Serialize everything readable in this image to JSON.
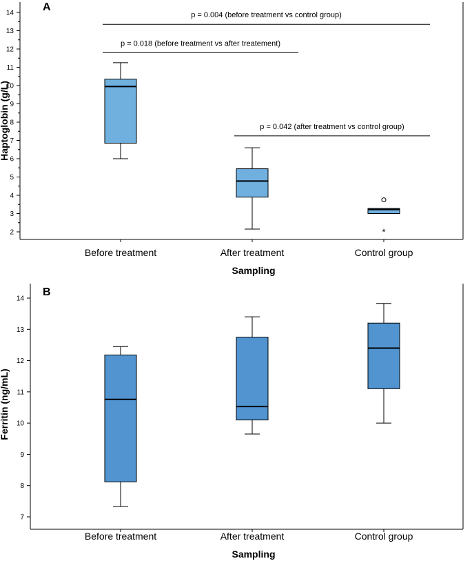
{
  "chart_data": [
    {
      "type": "box",
      "panel": "A",
      "ylabel": "Haptoglobin (g/L)",
      "xlabel": "Sampling",
      "ylim": [
        1.5,
        14.3
      ],
      "yticks": [
        2,
        3,
        4,
        5,
        6,
        7,
        8,
        9,
        10,
        11,
        12,
        13,
        14
      ],
      "categories": [
        "Before treatment",
        "After treatment",
        "Control group"
      ],
      "boxes": [
        {
          "category": "Before treatment",
          "min": 6.0,
          "q1": 6.85,
          "median": 9.95,
          "q3": 10.35,
          "max": 11.25
        },
        {
          "category": "After treatment",
          "min": 2.15,
          "q1": 3.9,
          "median": 4.78,
          "q3": 5.45,
          "max": 6.6
        },
        {
          "category": "Control group",
          "min": 3.0,
          "q1": 3.0,
          "median": 3.22,
          "q3": 3.28,
          "max": 3.28
        }
      ],
      "outliers": [
        {
          "category": "Control group",
          "value": 3.75,
          "marker": "circle"
        },
        {
          "category": "Control group",
          "value": 2.05,
          "marker": "star"
        }
      ],
      "annotations": [
        {
          "text": "p = 0.004 (before treatment vs control group)",
          "from": 0,
          "to": 2,
          "y": 13.35
        },
        {
          "text": "p = 0.018 (before treatment vs after treatement)",
          "from": 0,
          "to": 1,
          "y": 11.8
        },
        {
          "text": "p = 0.042 (after treatment vs control group)",
          "from": 1,
          "to": 2,
          "y": 7.25
        }
      ],
      "box_color": "#6fb0df"
    },
    {
      "type": "box",
      "panel": "B",
      "ylabel": "Ferritin (ng/mL)",
      "xlabel": "Sampling",
      "ylim": [
        6.75,
        14.4
      ],
      "yticks": [
        7,
        8,
        9,
        10,
        11,
        12,
        13,
        14
      ],
      "categories": [
        "Before treatment",
        "After treatment",
        "Control group"
      ],
      "boxes": [
        {
          "category": "Before treatment",
          "min": 7.33,
          "q1": 8.12,
          "median": 10.76,
          "q3": 12.18,
          "max": 12.45
        },
        {
          "category": "After treatment",
          "min": 9.65,
          "q1": 10.1,
          "median": 10.53,
          "q3": 12.75,
          "max": 13.4
        },
        {
          "category": "Control group",
          "min": 10.0,
          "q1": 11.1,
          "median": 12.4,
          "q3": 13.2,
          "max": 13.83
        }
      ],
      "outliers": [],
      "annotations": [],
      "box_color": "#5194d0"
    }
  ]
}
